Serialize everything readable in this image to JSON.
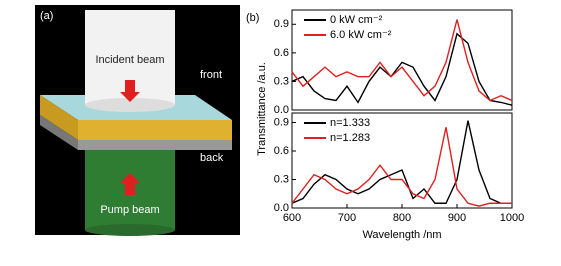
{
  "panel_a": {
    "label": "(a)",
    "incident": "Incident beam",
    "front": "front",
    "back": "back",
    "pump": "Pump beam"
  },
  "panel_b_label": "(b)",
  "chart_data": [
    {
      "type": "line",
      "ylabel": "Transmittance /a.u.",
      "x": [
        600,
        620,
        640,
        660,
        680,
        700,
        720,
        740,
        760,
        780,
        800,
        820,
        840,
        860,
        880,
        900,
        920,
        940,
        960,
        980,
        1000
      ],
      "series": [
        {
          "name": "0 kW cm⁻²",
          "color": "#000000",
          "values": [
            0.3,
            0.35,
            0.2,
            0.12,
            0.1,
            0.25,
            0.08,
            0.3,
            0.45,
            0.35,
            0.5,
            0.45,
            0.25,
            0.1,
            0.35,
            0.8,
            0.7,
            0.3,
            0.1,
            0.08,
            0.05
          ]
        },
        {
          "name": "6.0 kW cm⁻²",
          "color": "#e02020",
          "values": [
            0.4,
            0.25,
            0.35,
            0.45,
            0.35,
            0.4,
            0.35,
            0.35,
            0.5,
            0.35,
            0.45,
            0.3,
            0.15,
            0.25,
            0.5,
            0.95,
            0.5,
            0.2,
            0.1,
            0.15,
            0.1
          ]
        }
      ],
      "xlim": [
        600,
        1000
      ],
      "ylim": [
        0,
        1.05
      ],
      "yticks": [
        {
          "value": 0,
          "label": "0.0"
        },
        0.3,
        0.6,
        0.9
      ]
    },
    {
      "type": "line",
      "xlabel": "Wavelength /nm",
      "x": [
        600,
        620,
        640,
        660,
        680,
        700,
        720,
        740,
        760,
        780,
        800,
        820,
        840,
        860,
        880,
        900,
        920,
        940,
        960,
        980,
        1000
      ],
      "series": [
        {
          "name": "n=1.333",
          "color": "#000000",
          "values": [
            0.05,
            0.1,
            0.25,
            0.35,
            0.3,
            0.2,
            0.15,
            0.2,
            0.3,
            0.35,
            0.4,
            0.1,
            0.2,
            0.05,
            0.05,
            0.3,
            0.92,
            0.4,
            0.1,
            0.05,
            0.05
          ]
        },
        {
          "name": "n=1.283",
          "color": "#e02020",
          "values": [
            0.05,
            0.2,
            0.35,
            0.3,
            0.2,
            0.15,
            0.2,
            0.3,
            0.45,
            0.3,
            0.3,
            0.15,
            0.1,
            0.3,
            0.85,
            0.2,
            0.05,
            0.02,
            0.05,
            0.05,
            0.05
          ]
        }
      ],
      "xlim": [
        600,
        1000
      ],
      "ylim": [
        0,
        1.0
      ],
      "xticks": [
        600,
        700,
        800,
        900,
        1000
      ],
      "yticks": [
        {
          "value": 0,
          "label": "0.0"
        },
        0.3,
        0.6,
        0.9
      ]
    }
  ]
}
